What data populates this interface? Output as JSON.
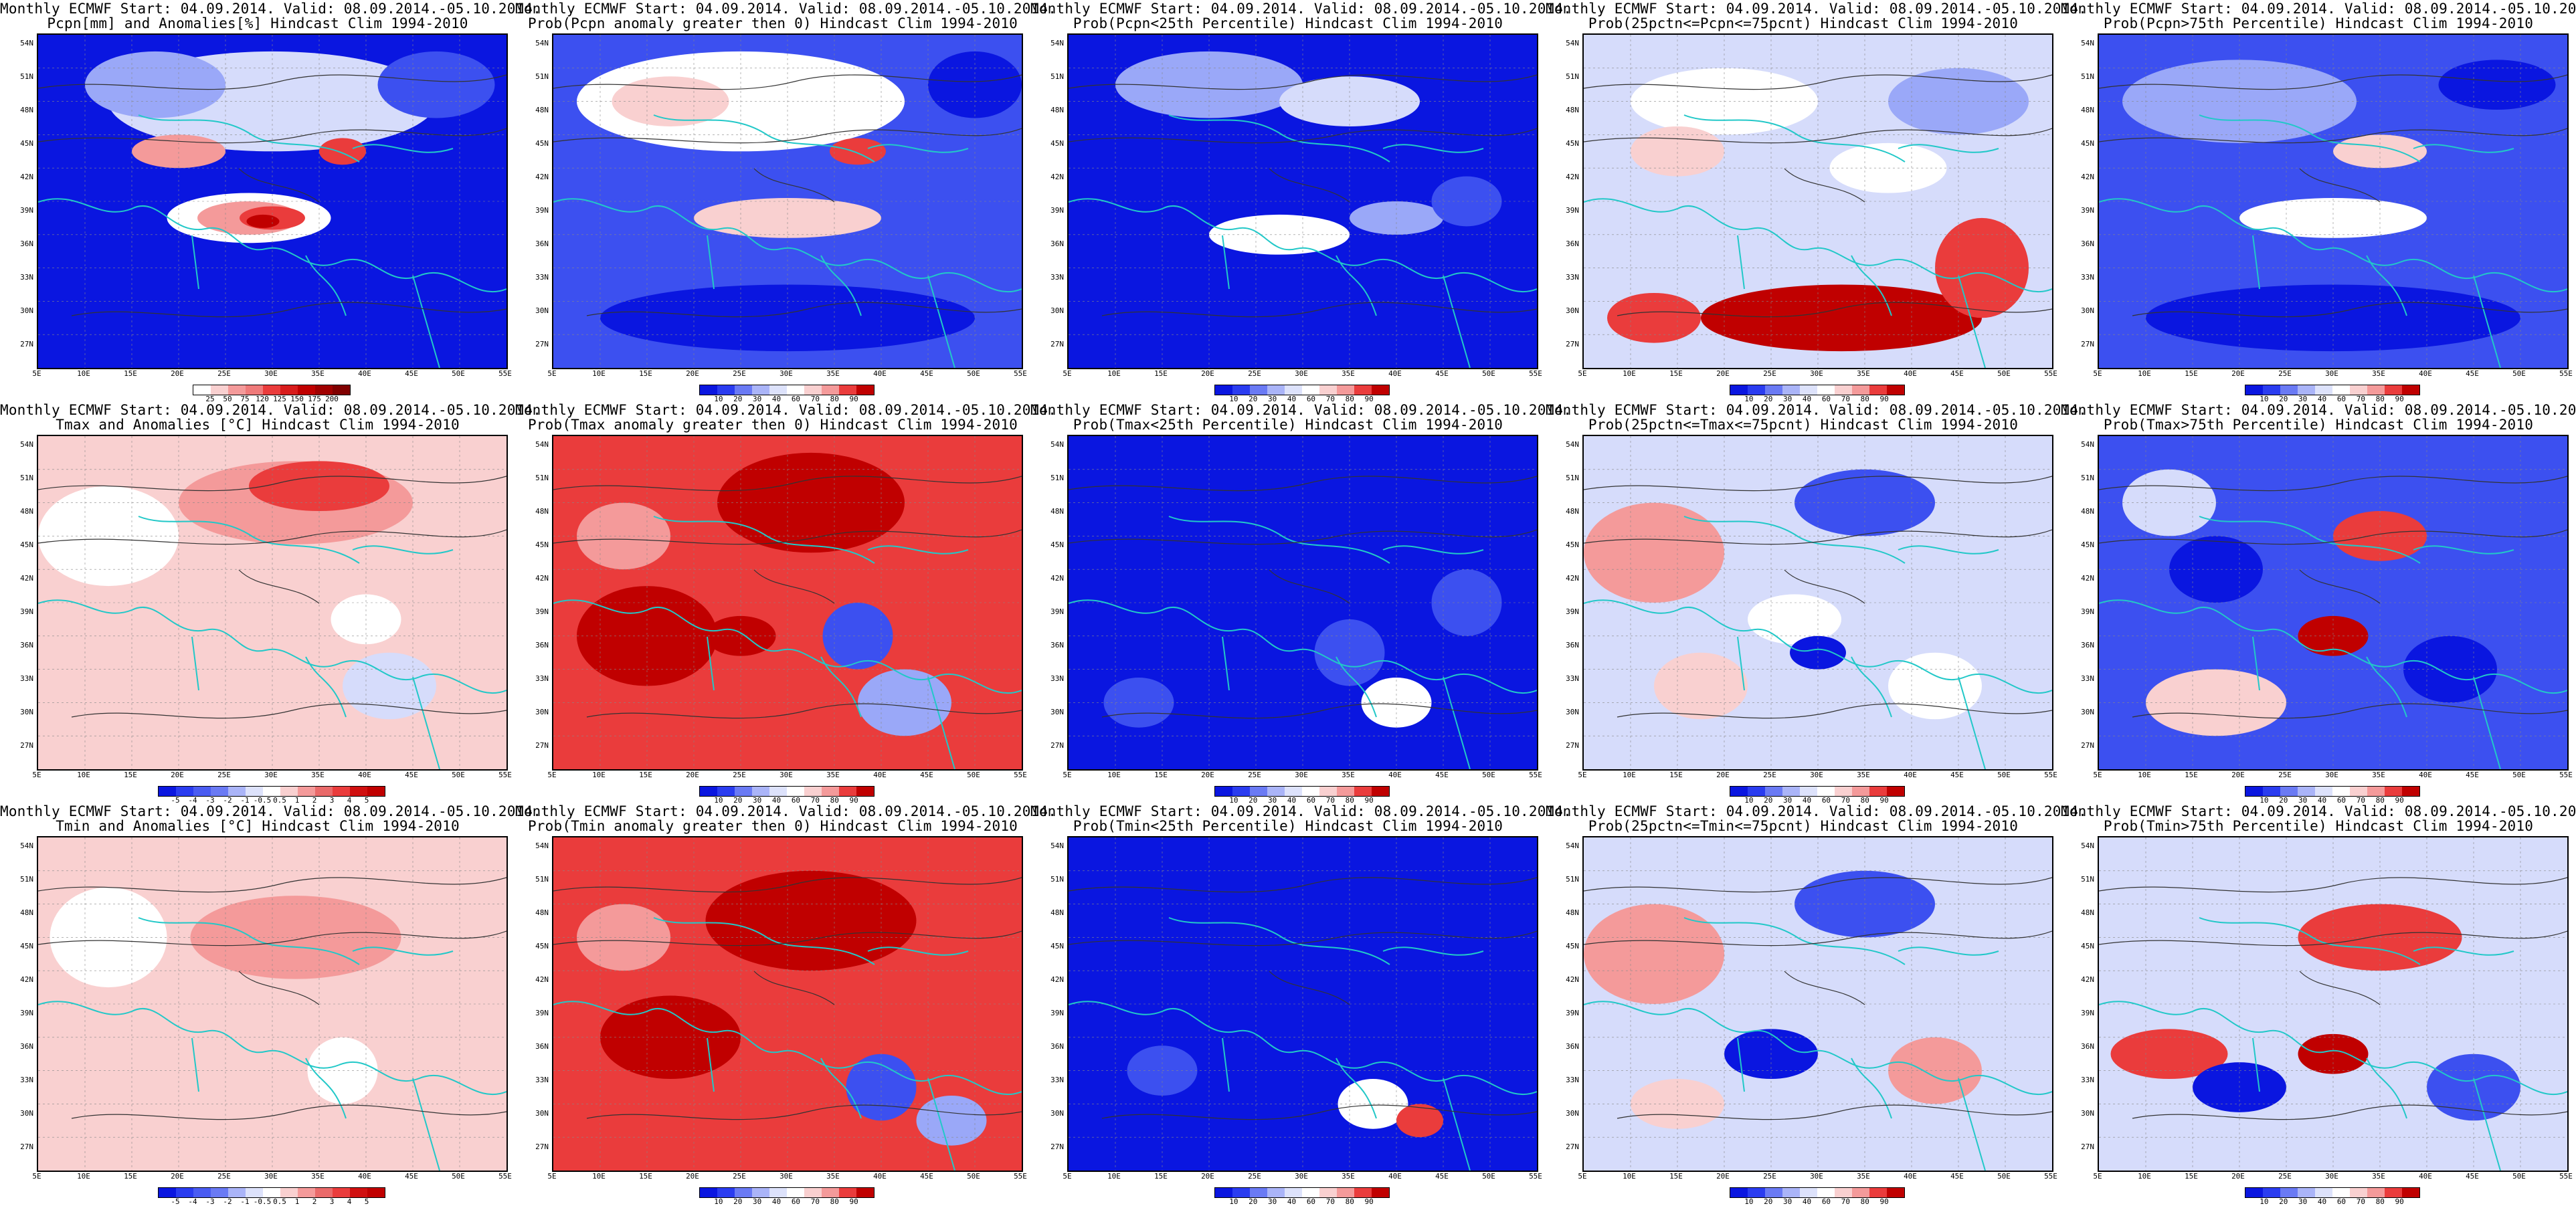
{
  "header_line": "Monthly ECMWF Start: 04.09.2014. Valid: 08.09.2014.-05.10.2014.",
  "lat_labels": [
    "54N",
    "51N",
    "48N",
    "45N",
    "42N",
    "39N",
    "36N",
    "33N",
    "30N",
    "27N"
  ],
  "lon_labels": [
    "5E",
    "10E",
    "15E",
    "20E",
    "25E",
    "30E",
    "35E",
    "40E",
    "45E",
    "50E",
    "55E"
  ],
  "colorbars": {
    "precip_anom": {
      "labels": [
        "25",
        "50",
        "75",
        "120",
        "125",
        "150",
        "175",
        "200"
      ]
    },
    "prob": {
      "labels": [
        "10",
        "20",
        "30",
        "40",
        "60",
        "70",
        "80",
        "90"
      ]
    },
    "temp_anom": {
      "labels": [
        "-5",
        "-4",
        "-3",
        "-2",
        "-1",
        "-0.5",
        "0.5",
        "1",
        "2",
        "3",
        "4",
        "5"
      ]
    }
  },
  "colors": {
    "deep_blue": "#0a16e0",
    "mid_blue": "#3c50f0",
    "light_blue": "#9aa8f8",
    "pale_blue": "#d6dcfb",
    "white": "#ffffff",
    "pale_red": "#f9d0d0",
    "light_red": "#f49a9a",
    "mid_red": "#ea3c3c",
    "deep_red": "#c00000",
    "coast": "#22c8c8",
    "contour": "#333333"
  },
  "panels": [
    {
      "line2": "Pcpn[mm] and Anomalies[%] Hindcast Clim 1994-2010",
      "cbar": "precip_anom",
      "pattern": "pcpn_anom"
    },
    {
      "line2": "Prob(Pcpn anomaly greater then 0) Hindcast Clim 1994-2010",
      "cbar": "prob",
      "pattern": "pcpn_pos"
    },
    {
      "line2": "Prob(Pcpn<25th Percentile) Hindcast Clim 1994-2010",
      "cbar": "prob",
      "pattern": "pcpn_low"
    },
    {
      "line2": "Prob(25pctn<=Pcpn<=75pcnt) Hindcast Clim 1994-2010",
      "cbar": "prob",
      "pattern": "pcpn_mid"
    },
    {
      "line2": "Prob(Pcpn>75th Percentile) Hindcast Clim 1994-2010",
      "cbar": "prob",
      "pattern": "pcpn_high"
    },
    {
      "line2": "Tmax and Anomalies [°C] Hindcast Clim 1994-2010",
      "cbar": "temp_anom",
      "pattern": "tmax_anom"
    },
    {
      "line2": "Prob(Tmax anomaly greater then 0) Hindcast Clim 1994-2010",
      "cbar": "prob",
      "pattern": "tmax_pos"
    },
    {
      "line2": "Prob(Tmax<25th Percentile) Hindcast Clim 1994-2010",
      "cbar": "prob",
      "pattern": "tmax_low"
    },
    {
      "line2": "Prob(25pctn<=Tmax<=75pcnt) Hindcast Clim 1994-2010",
      "cbar": "prob",
      "pattern": "tmax_mid"
    },
    {
      "line2": "Prob(Tmax>75th Percentile) Hindcast Clim 1994-2010",
      "cbar": "prob",
      "pattern": "tmax_high"
    },
    {
      "line2": "Tmin and Anomalies [°C] Hindcast Clim 1994-2010",
      "cbar": "temp_anom",
      "pattern": "tmin_anom"
    },
    {
      "line2": "Prob(Tmin anomaly greater then 0) Hindcast Clim 1994-2010",
      "cbar": "prob",
      "pattern": "tmin_pos"
    },
    {
      "line2": "Prob(Tmin<25th Percentile) Hindcast Clim 1994-2010",
      "cbar": "prob",
      "pattern": "tmin_low"
    },
    {
      "line2": "Prob(25pctn<=Tmin<=75pcnt) Hindcast Clim 1994-2010",
      "cbar": "prob",
      "pattern": "tmin_mid"
    },
    {
      "line2": "Prob(Tmin>75th Percentile) Hindcast Clim 1994-2010",
      "cbar": "prob",
      "pattern": "tmin_high"
    }
  ]
}
